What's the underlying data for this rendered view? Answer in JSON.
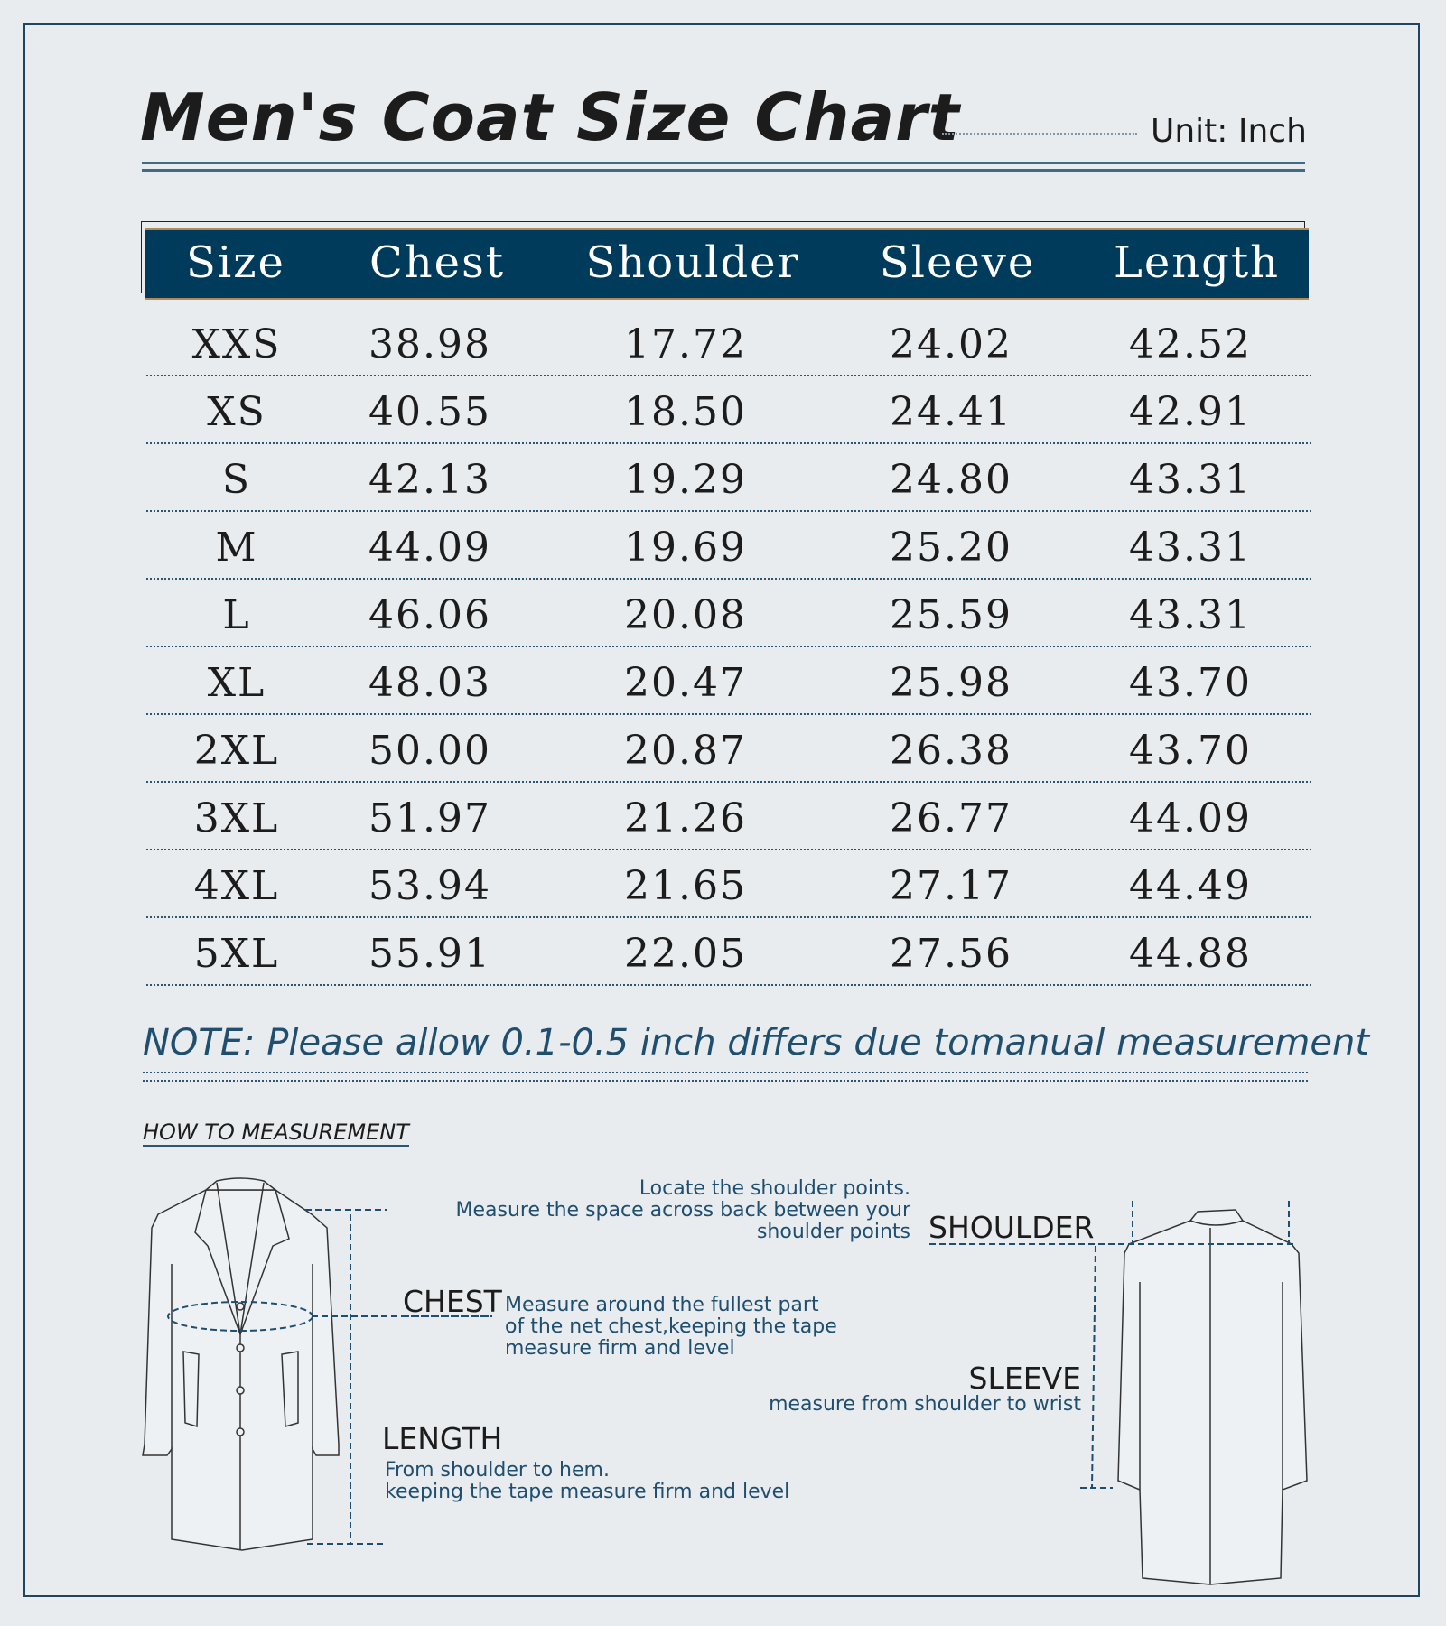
{
  "title": "Men's Coat Size Chart",
  "unit": "Unit: Inch",
  "table": {
    "headers": [
      "Size",
      "Chest",
      "Shoulder",
      "Sleeve",
      "Length"
    ],
    "rows": [
      [
        "XXS",
        "38.98",
        "17.72",
        "24.02",
        "42.52"
      ],
      [
        "XS",
        "40.55",
        "18.50",
        "24.41",
        "42.91"
      ],
      [
        "S",
        "42.13",
        "19.29",
        "24.80",
        "43.31"
      ],
      [
        "M",
        "44.09",
        "19.69",
        "25.20",
        "43.31"
      ],
      [
        "L",
        "46.06",
        "20.08",
        "25.59",
        "43.31"
      ],
      [
        "XL",
        "48.03",
        "20.47",
        "25.98",
        "43.70"
      ],
      [
        "2XL",
        "50.00",
        "20.87",
        "26.38",
        "43.70"
      ],
      [
        "3XL",
        "51.97",
        "21.26",
        "26.77",
        "44.09"
      ],
      [
        "4XL",
        "53.94",
        "21.65",
        "27.17",
        "44.49"
      ],
      [
        "5XL",
        "55.91",
        "22.05",
        "27.56",
        "44.88"
      ]
    ]
  },
  "note": "NOTE: Please allow 0.1-0.5 inch differs due tomanual measurement",
  "how_to": {
    "heading": "HOW TO MEASUREMENT",
    "shoulder": {
      "label": "SHOULDER",
      "lines": [
        "Locate the shoulder points.",
        "Measure the space across back between your",
        "shoulder points"
      ]
    },
    "chest": {
      "label": "CHEST",
      "lines": [
        "Measure around the fullest part",
        "of the net chest,keeping the tape",
        "measure firm and level"
      ]
    },
    "sleeve": {
      "label": "SLEEVE",
      "lines": [
        "measure from shoulder to wrist"
      ]
    },
    "length": {
      "label": "LENGTH",
      "lines": [
        "From shoulder to hem.",
        "keeping the tape measure firm and level"
      ]
    }
  },
  "colors": {
    "header_bg": "#003b5c",
    "accent": "#1f4e6e",
    "background": "#e8ecef"
  }
}
